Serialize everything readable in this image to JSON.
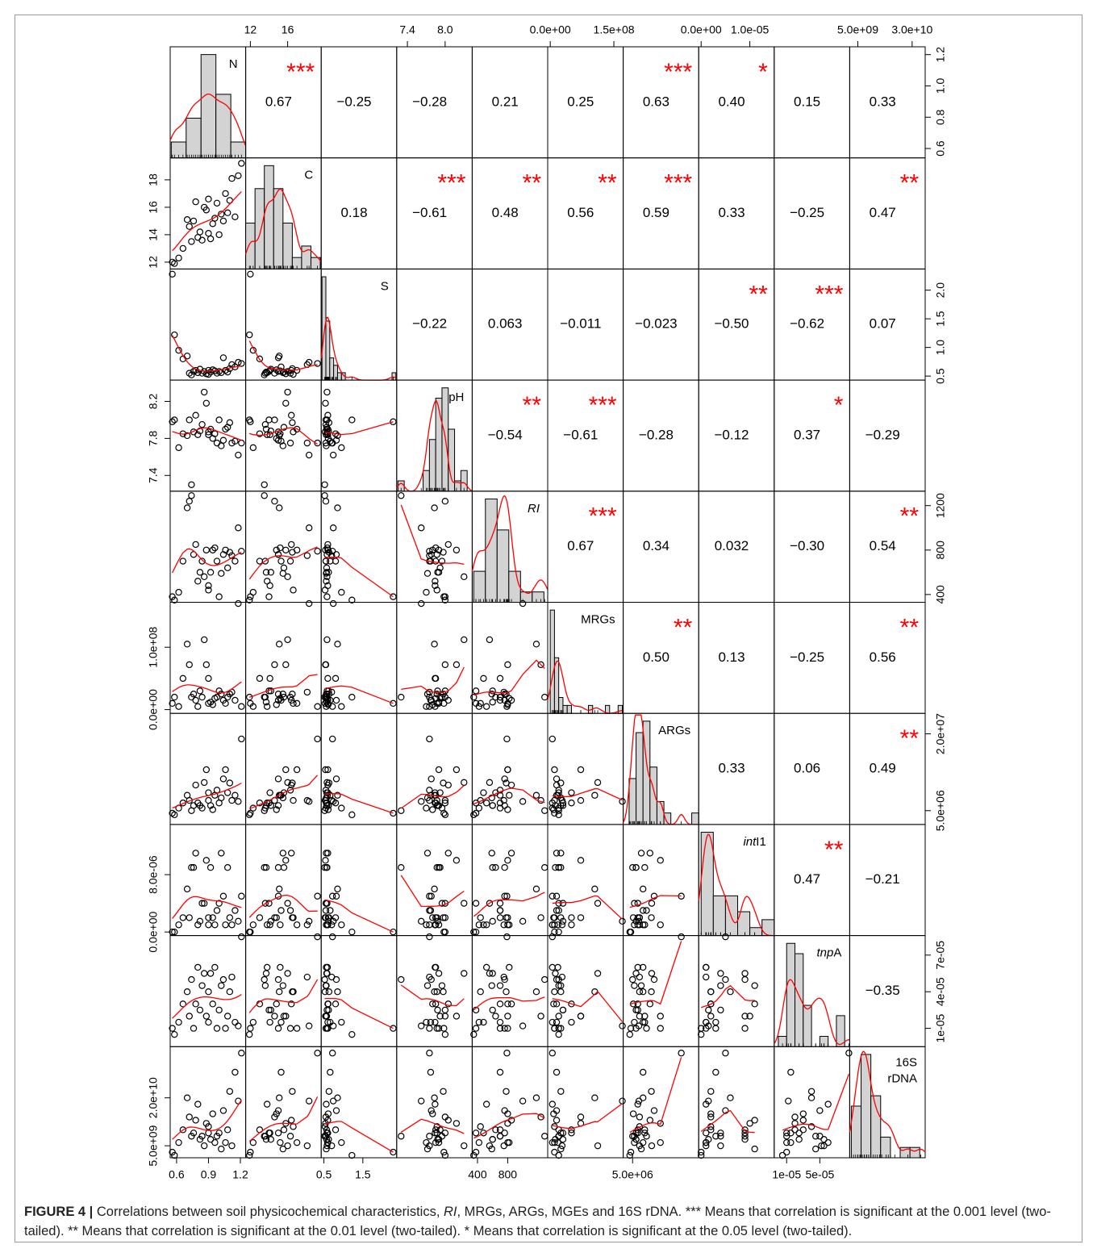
{
  "chart_data": {
    "type": "scatter_matrix",
    "point_color": "#000000",
    "smooth_color": "#ff0000",
    "hist_fill": "#d3d3d3",
    "star_color": "#ff0000",
    "variables": [
      {
        "label": [
          {
            "text": "N"
          }
        ],
        "lim": [
          0.54,
          1.25
        ],
        "outer_ticks": [
          0.6,
          0.9,
          1.2
        ],
        "side_ticks": [
          0.6,
          0.8,
          {
            "value": 1,
            "label": "1.0"
          },
          1.2
        ],
        "samples": [
          0.56,
          0.58,
          0.62,
          0.66,
          0.7,
          0.72,
          0.74,
          0.76,
          0.78,
          0.8,
          0.82,
          0.84,
          0.86,
          0.88,
          0.9,
          0.9,
          0.92,
          0.94,
          0.96,
          0.98,
          1.0,
          1.02,
          1.04,
          1.06,
          1.08,
          1.1,
          1.12,
          1.15,
          1.18,
          1.21
        ],
        "hist": {
          "bins": [
            0.55,
            0.69,
            0.83,
            0.97,
            1.11,
            1.25
          ],
          "counts": [
            2,
            5,
            13,
            8,
            2
          ]
        }
      },
      {
        "label": [
          {
            "text": "C"
          }
        ],
        "lim": [
          11.5,
          19.6
        ],
        "outer_ticks": [
          12,
          16
        ],
        "side_ticks": [
          12,
          14,
          16,
          18
        ],
        "samples": [
          12.0,
          11.9,
          12.3,
          13.0,
          15.1,
          14.6,
          13.5,
          15.0,
          16.4,
          13.8,
          14.2,
          13.6,
          16.0,
          15.8,
          14.1,
          16.6,
          13.7,
          14.8,
          15.2,
          16.3,
          14.0,
          15.5,
          15.0,
          17.0,
          15.6,
          16.5,
          18.1,
          15.3,
          18.3,
          19.2
        ],
        "hist": {
          "bins": [
            11.5,
            12.5,
            13.5,
            14.5,
            15.5,
            16.5,
            17.5,
            18.5,
            19.5
          ],
          "counts": [
            4,
            7,
            9,
            7,
            4,
            1,
            2,
            1
          ]
        }
      },
      {
        "label": [
          {
            "text": "S"
          }
        ],
        "lim": [
          0.43,
          2.37
        ],
        "outer_ticks": [
          0.5,
          1.5
        ],
        "side_ticks": [
          0.5,
          {
            "value": 1,
            "label": "1.0"
          },
          1.5,
          {
            "value": 2,
            "label": "2.0"
          }
        ],
        "samples": [
          2.28,
          1.22,
          0.95,
          0.8,
          0.85,
          0.55,
          0.52,
          0.58,
          0.6,
          0.56,
          0.62,
          0.55,
          0.58,
          0.54,
          0.6,
          0.53,
          0.57,
          0.61,
          0.59,
          0.55,
          0.58,
          0.56,
          0.82,
          0.6,
          0.57,
          0.63,
          0.7,
          0.66,
          0.74,
          0.72
        ],
        "hist": {
          "bins": [
            0.45,
            0.55,
            0.65,
            0.75,
            0.85,
            0.95,
            1.05,
            1.15,
            1.25,
            1.35,
            1.45,
            1.55,
            1.65,
            1.75,
            1.85,
            1.95,
            2.05,
            2.15,
            2.25,
            2.35
          ],
          "counts": [
            14,
            8,
            3,
            2,
            1,
            1,
            0,
            0,
            0,
            0,
            0,
            0,
            0,
            0,
            0,
            0,
            0,
            0,
            1
          ]
        }
      },
      {
        "label": [
          {
            "text": "pH"
          }
        ],
        "lim": [
          7.23,
          8.43
        ],
        "outer_ticks": [
          7.4,
          {
            "value": 8,
            "label": "8.0"
          }
        ],
        "side_ticks": [
          7.4,
          7.8,
          8.2
        ],
        "samples": [
          7.98,
          8.0,
          7.7,
          7.85,
          7.83,
          8.0,
          7.3,
          7.87,
          8.05,
          7.84,
          7.88,
          7.95,
          8.3,
          8.18,
          7.84,
          7.87,
          7.9,
          7.8,
          7.85,
          7.75,
          8.0,
          7.72,
          7.78,
          7.9,
          7.92,
          7.97,
          7.75,
          7.77,
          7.62,
          7.75
        ],
        "hist": {
          "bins": [
            7.25,
            7.35,
            7.45,
            7.55,
            7.65,
            7.75,
            7.85,
            7.95,
            8.05,
            8.15,
            8.25,
            8.35
          ],
          "counts": [
            1,
            0,
            0,
            0,
            2,
            5,
            9,
            10,
            6,
            1,
            2
          ]
        }
      },
      {
        "label": [
          {
            "text": "RI",
            "italic": true
          }
        ],
        "lim": [
          330,
          1330
        ],
        "outer_ticks": [
          400,
          800
        ],
        "side_ticks": [
          400,
          800,
          1200
        ],
        "samples": [
          380,
          350,
          420,
          700,
          1180,
          1240,
          1290,
          760,
          850,
          520,
          600,
          700,
          560,
          800,
          480,
          440,
          600,
          800,
          820,
          700,
          380,
          590,
          760,
          800,
          640,
          780,
          750,
          700,
          1000,
          790
        ],
        "hist": {
          "bins": [
            350,
            505,
            660,
            815,
            970,
            1125,
            1280
          ],
          "counts": [
            3,
            10,
            7,
            3,
            1,
            1
          ]
        }
      },
      {
        "label": [
          {
            "text": "MRGs"
          }
        ],
        "lim": [
          -6000000.0,
          172000000.0
        ],
        "outer_ticks": [
          {
            "value": 0,
            "label": "0.0e+00"
          },
          {
            "value": 150000000.0,
            "label": "1.5e+08"
          }
        ],
        "side_ticks": [
          {
            "value": 0,
            "label": "0.0e+00"
          },
          {
            "value": 100000000.0,
            "label": "1.0e+08"
          }
        ],
        "samples": [
          10000000.0,
          20000000.0,
          5000000.0,
          50000000.0,
          105000000.0,
          72000000.0,
          20000000.0,
          25000000.0,
          15000000.0,
          5000000.0,
          30000000.0,
          20000000.0,
          112000000.0,
          72000000.0,
          50000000.0,
          10000000.0,
          12000000.0,
          8000000.0,
          18000000.0,
          20000000.0,
          30000000.0,
          25000000.0,
          15000000.0,
          10000000.0,
          20000000.0,
          25000000.0,
          28000000.0,
          15000000.0,
          170000000.0,
          5000000.0
        ],
        "hist": {
          "bins": [
            0,
            10000000.0,
            20000000.0,
            30000000.0,
            40000000.0,
            50000000.0,
            60000000.0,
            70000000.0,
            80000000.0,
            90000000.0,
            100000000.0,
            110000000.0,
            120000000.0,
            130000000.0,
            140000000.0,
            150000000.0,
            160000000.0,
            170000000.0
          ],
          "counts": [
            13,
            7,
            2,
            1,
            1,
            0,
            0,
            0,
            0,
            1,
            0,
            0,
            0,
            1,
            0,
            0,
            1
          ]
        }
      },
      {
        "label": [
          {
            "text": "ARGs"
          }
        ],
        "lim": [
          2300000.0,
          24000000.0
        ],
        "outer_ticks": [
          {
            "value": 5000000.0,
            "label": "5.0e+06"
          }
        ],
        "side_ticks": [
          {
            "value": 5000000.0,
            "label": "5.0e+06"
          },
          {
            "value": 20000000.0,
            "label": "2.0e+07"
          }
        ],
        "samples": [
          4500000.0,
          4200000.0,
          5500000.0,
          6500000.0,
          8000000.0,
          7000000.0,
          5000000.0,
          6000000.0,
          10000000.0,
          6500000.0,
          6000000.0,
          5500000.0,
          10500000.0,
          13000000.0,
          8500000.0,
          7000000.0,
          6000000.0,
          5200000.0,
          8000000.0,
          9000000.0,
          6500000.0,
          7500000.0,
          11200000.0,
          13000000.0,
          8500000.0,
          10400000.0,
          7000000.0,
          8000000.0,
          6800000.0,
          19000000.0
        ],
        "hist": {
          "bins": [
            4000000.0,
            6000000.0,
            8000000.0,
            10000000.0,
            12000000.0,
            14000000.0,
            16000000.0,
            18000000.0,
            20000000.0,
            22000000.0,
            24000000.0
          ],
          "counts": [
            4,
            8,
            9,
            5,
            2,
            1,
            0,
            0,
            0,
            1
          ]
        }
      },
      {
        "label": [
          {
            "text": "int",
            "italic": true
          },
          {
            "text": "I1"
          }
        ],
        "lim": [
          -5e-07,
          1.5e-05
        ],
        "outer_ticks": [
          {
            "value": 0,
            "label": "0.0e+00"
          },
          {
            "value": 1e-05,
            "label": "1.0e-05"
          }
        ],
        "side_ticks": [
          {
            "value": 0,
            "label": "0.0e+00"
          },
          {
            "value": 8e-06,
            "label": "8.0e-06"
          }
        ],
        "samples": [
          0,
          0,
          1e-06,
          2e-06,
          6e-06,
          2e-06,
          9e-06,
          9e-06,
          1.1e-05,
          1e-06,
          1.5e-06,
          4e-06,
          4e-06,
          1e-05,
          1e-06,
          2e-06,
          9e-06,
          2e-06,
          1e-06,
          3e-06,
          4e-06,
          1.1e-05,
          5e-06,
          1e-06,
          9e-06,
          2e-06,
          1e-06,
          3e-06,
          1.5e-06,
          5e-06
        ],
        "hist": {
          "bins": [
            0,
            2.5e-06,
            5e-06,
            7.5e-06,
            1e-05,
            1.25e-05,
            1.5e-05
          ],
          "counts": [
            13,
            5,
            5,
            3,
            1,
            2
          ]
        }
      },
      {
        "label": [
          {
            "text": "tnp",
            "italic": true
          },
          {
            "text": "A"
          }
        ],
        "lim": [
          -5e-06,
          8.6e-05
        ],
        "outer_ticks": [
          {
            "value": 1e-05,
            "label": "1e-05"
          },
          {
            "value": 5e-05,
            "label": "5e-05"
          }
        ],
        "side_ticks": [
          {
            "value": 1e-05,
            "label": "1e-05"
          },
          {
            "value": 4e-05,
            "label": "4e-05"
          },
          {
            "value": 7e-05,
            "label": "7e-05"
          }
        ],
        "samples": [
          1e-05,
          5e-06,
          1.5e-05,
          3e-05,
          4e-05,
          2e-05,
          5e-05,
          1e-05,
          3e-05,
          6e-05,
          2.5e-05,
          4.5e-05,
          5.5e-05,
          2e-05,
          1.5e-05,
          4e-05,
          5.5e-05,
          3e-05,
          6e-05,
          1e-05,
          2.5e-05,
          4.5e-05,
          5e-05,
          1e-05,
          2e-05,
          4e-05,
          5.2e-05,
          1.5e-05,
          1.2e-05,
          8.5e-05
        ],
        "hist": {
          "bins": [
            0,
            1e-05,
            2e-05,
            3e-05,
            4e-05,
            5e-05,
            6e-05,
            7e-05,
            8e-05
          ],
          "counts": [
            1,
            10,
            9,
            4,
            0,
            1,
            0,
            3
          ]
        }
      },
      {
        "label": [
          {
            "text": "16S"
          },
          {
            "text": "rDNA",
            "newline": true
          }
        ],
        "lim": [
          1250000000.0,
          36000000000.0
        ],
        "outer_ticks": [
          {
            "value": 5000000000.0,
            "label": "5.0e+09"
          },
          {
            "value": 30000000000.0,
            "label": "3.0e+10"
          }
        ],
        "side_ticks": [
          {
            "value": 5000000000.0,
            "label": "5.0e+09"
          },
          {
            "value": 20000000000.0,
            "label": "2.0e+10"
          }
        ],
        "samples": [
          3000000000.0,
          2000000000.0,
          6000000000.0,
          10000000000.0,
          20000000000.0,
          14000000000.0,
          8000000000.0,
          9000000000.0,
          13000000000.0,
          18000000000.0,
          7000000000.0,
          8000000000.0,
          5000000000.0,
          12000000000.0,
          9000000000.0,
          11000000000.0,
          7000000000.0,
          15000000000.0,
          6000000000.0,
          8000000000.0,
          9000000000.0,
          4000000000.0,
          16000000000.0,
          6000000000.0,
          10000000000.0,
          22000000000.0,
          5000000000.0,
          28000000000.0,
          19000000000.0,
          34000000000.0
        ],
        "hist": {
          "bins": [
            2000000000.0,
            6500000000.0,
            11000000000.0,
            15500000000.0,
            20000000000.0,
            24500000000.0,
            29000000000.0,
            33500000000.0
          ],
          "counts": [
            5,
            10,
            6,
            2,
            0,
            1,
            1
          ]
        }
      }
    ],
    "correlations": [
      [
        {
          "value": 0.67,
          "label": "0.67",
          "stars": "***"
        },
        {
          "value": -0.25,
          "label": "−0.25"
        },
        {
          "value": -0.28,
          "label": "−0.28"
        },
        {
          "value": 0.21,
          "label": "0.21"
        },
        {
          "value": 0.25,
          "label": "0.25"
        },
        {
          "value": 0.63,
          "label": "0.63",
          "stars": "***"
        },
        {
          "value": 0.4,
          "label": "0.40",
          "stars": "*"
        },
        {
          "value": 0.15,
          "label": "0.15"
        },
        {
          "value": 0.33,
          "label": "0.33"
        }
      ],
      [
        {
          "value": 0.18,
          "label": "0.18"
        },
        {
          "value": -0.61,
          "label": "−0.61",
          "stars": "***"
        },
        {
          "value": 0.48,
          "label": "0.48",
          "stars": "**"
        },
        {
          "value": 0.56,
          "label": "0.56",
          "stars": "**"
        },
        {
          "value": 0.59,
          "label": "0.59",
          "stars": "***"
        },
        {
          "value": 0.33,
          "label": "0.33"
        },
        {
          "value": -0.25,
          "label": "−0.25"
        },
        {
          "value": 0.47,
          "label": "0.47",
          "stars": "**"
        }
      ],
      [
        {
          "value": -0.22,
          "label": "−0.22"
        },
        {
          "value": 0.063,
          "label": "0.063"
        },
        {
          "value": -0.011,
          "label": "−0.011"
        },
        {
          "value": -0.023,
          "label": "−0.023"
        },
        {
          "value": -0.5,
          "label": "−0.50",
          "stars": "**"
        },
        {
          "value": -0.62,
          "label": "−0.62",
          "stars": "***"
        },
        {
          "value": 0.07,
          "label": "0.07"
        }
      ],
      [
        {
          "value": -0.54,
          "label": "−0.54",
          "stars": "**"
        },
        {
          "value": -0.61,
          "label": "−0.61",
          "stars": "***"
        },
        {
          "value": -0.28,
          "label": "−0.28"
        },
        {
          "value": -0.12,
          "label": "−0.12"
        },
        {
          "value": 0.37,
          "label": "0.37",
          "stars": "*"
        },
        {
          "value": -0.29,
          "label": "−0.29"
        }
      ],
      [
        {
          "value": 0.67,
          "label": "0.67",
          "stars": "***"
        },
        {
          "value": 0.34,
          "label": "0.34"
        },
        {
          "value": 0.032,
          "label": "0.032"
        },
        {
          "value": -0.3,
          "label": "−0.30"
        },
        {
          "value": 0.54,
          "label": "0.54",
          "stars": "**"
        }
      ],
      [
        {
          "value": 0.5,
          "label": "0.50",
          "stars": "**"
        },
        {
          "value": 0.13,
          "label": "0.13"
        },
        {
          "value": -0.25,
          "label": "−0.25"
        },
        {
          "value": 0.56,
          "label": "0.56",
          "stars": "**"
        }
      ],
      [
        {
          "value": 0.33,
          "label": "0.33"
        },
        {
          "value": 0.06,
          "label": "0.06"
        },
        {
          "value": 0.49,
          "label": "0.49",
          "stars": "**"
        }
      ],
      [
        {
          "value": 0.47,
          "label": "0.47",
          "stars": "**"
        },
        {
          "value": -0.21,
          "label": "−0.21"
        }
      ],
      [
        {
          "value": -0.35,
          "label": "−0.35"
        }
      ]
    ]
  },
  "caption": {
    "label": "FIGURE 4 |",
    "parts": [
      {
        "text": "Correlations between soil physicochemical characteristics, "
      },
      {
        "text": "RI",
        "italic": true
      },
      {
        "text": ", MRGs, ARGs, MGEs and 16S rDNA. *** Means that correlation is significant at the 0.001 level (two-tailed). ** Means that correlation is significant at the 0.01 level (two-tailed). * Means that correlation is significant at the 0.05 level (two-tailed)."
      }
    ]
  }
}
